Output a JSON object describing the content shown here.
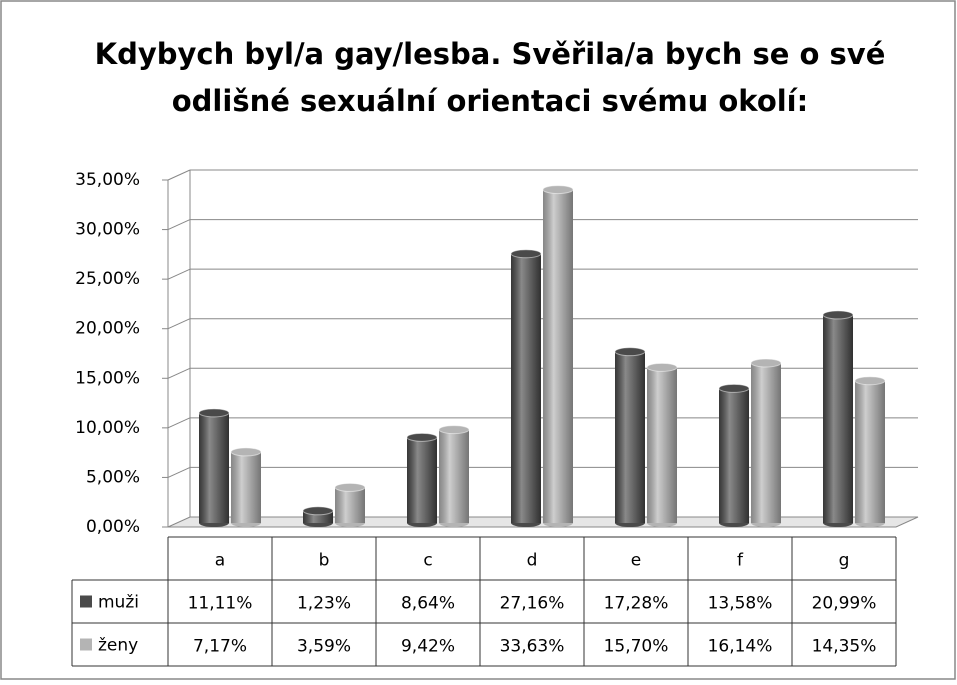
{
  "chart_data": {
    "type": "bar",
    "title": [
      "Kdybych byl/a gay/lesba. Svěřila/a bych se o své",
      "odlišné sexuální orientaci svému okolí:"
    ],
    "categories": [
      "a",
      "b",
      "c",
      "d",
      "e",
      "f",
      "g"
    ],
    "series": [
      {
        "name": "muži",
        "color": "#4a4a4a",
        "values": [
          11.11,
          1.23,
          8.64,
          27.16,
          17.28,
          13.58,
          20.99
        ],
        "value_labels": [
          "11,11%",
          "1,23%",
          "8,64%",
          "27,16%",
          "17,28%",
          "13,58%",
          "20,99%"
        ]
      },
      {
        "name": "ženy",
        "color": "#b4b4b4",
        "values": [
          7.17,
          3.59,
          9.42,
          33.63,
          15.7,
          16.14,
          14.35
        ],
        "value_labels": [
          "7,17%",
          "3,59%",
          "9,42%",
          "33,63%",
          "15,70%",
          "16,14%",
          "14,35%"
        ]
      }
    ],
    "ylim": [
      0,
      35
    ],
    "yticks": [
      {
        "value": 0,
        "label": "0,00%"
      },
      {
        "value": 5,
        "label": "5,00%"
      },
      {
        "value": 10,
        "label": "10,00%"
      },
      {
        "value": 15,
        "label": "15,00%"
      },
      {
        "value": 20,
        "label": "20,00%"
      },
      {
        "value": 25,
        "label": "25,00%"
      },
      {
        "value": 30,
        "label": "30,00%"
      },
      {
        "value": 35,
        "label": "35,00%"
      }
    ],
    "grid": true
  }
}
